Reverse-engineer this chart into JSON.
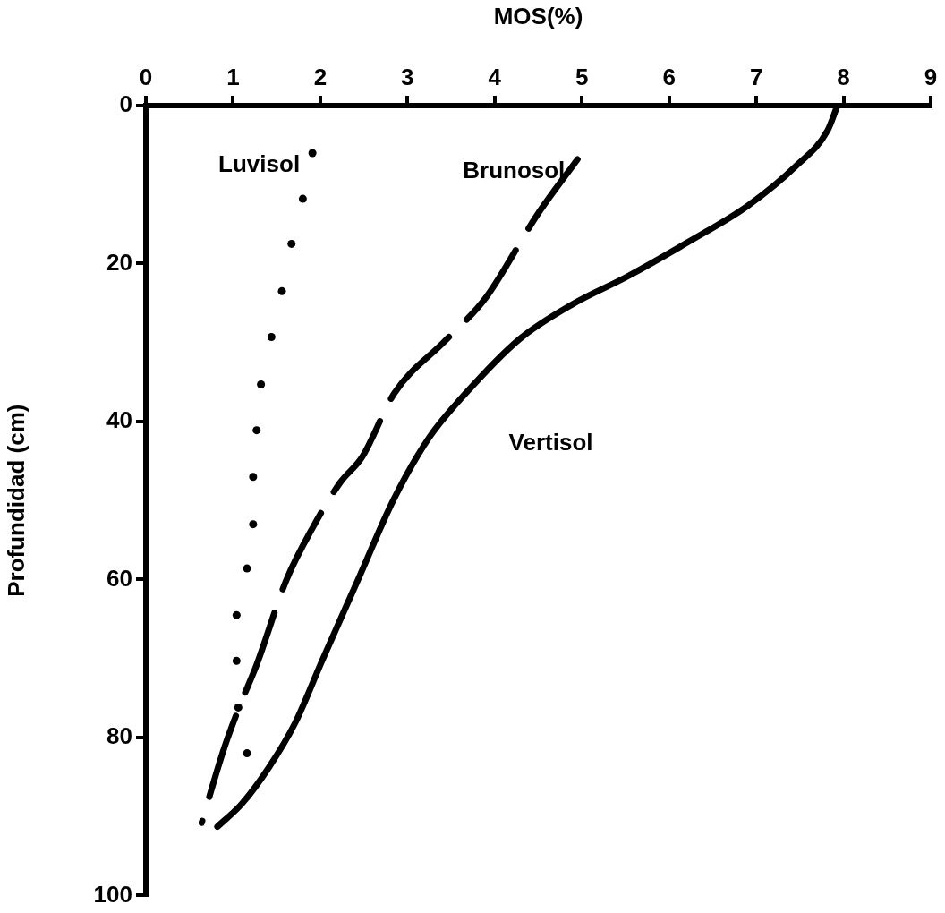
{
  "chart_data": {
    "type": "line",
    "xlabel": "MOS(%)",
    "ylabel": "Profundidad (cm)",
    "xlim": [
      0,
      9
    ],
    "xticks": [
      0,
      1,
      2,
      3,
      4,
      5,
      6,
      7,
      8,
      9
    ],
    "ylim": [
      100,
      0
    ],
    "yticks": [
      0,
      20,
      40,
      60,
      80,
      100
    ],
    "grid": false,
    "legend": false,
    "marker": "none",
    "series": [
      {
        "name": "Luvisol",
        "type": "scatter",
        "marker": "circle",
        "color": "#000000",
        "x": [
          1.91,
          1.8,
          1.67,
          1.56,
          1.44,
          1.32,
          1.27,
          1.23,
          1.23,
          1.16,
          1.04,
          1.04,
          1.06,
          1.16
        ],
        "values": [
          6.0,
          11.8,
          17.5,
          23.5,
          29.3,
          35.3,
          41.1,
          47.0,
          53.0,
          58.6,
          64.5,
          70.3,
          76.2,
          82.0
        ]
      },
      {
        "name": "Brunosol",
        "color": "#000000",
        "line_style": "dashed",
        "x": [
          4.95,
          4.49,
          3.9,
          3.43,
          2.85,
          2.48,
          2.23,
          1.92,
          1.61,
          1.27,
          1.08,
          0.89,
          0.64
        ],
        "values": [
          6.8,
          13.8,
          24.3,
          29.8,
          36.4,
          44.5,
          47.7,
          53.3,
          60.1,
          70.8,
          75.9,
          81.6,
          90.8
        ]
      },
      {
        "name": "Vertisol",
        "color": "#000000",
        "line_style": "solid",
        "x": [
          7.93,
          7.82,
          7.46,
          6.9,
          6.23,
          5.51,
          4.9,
          4.28,
          3.67,
          3.25,
          2.84,
          2.43,
          2.02,
          1.71,
          1.41,
          1.1,
          0.82
        ],
        "values": [
          0,
          3.1,
          7.6,
          12.7,
          17.2,
          21.7,
          25.1,
          29.6,
          36.4,
          42.0,
          49.9,
          60.1,
          70.3,
          78.2,
          83.8,
          88.4,
          91.3
        ]
      }
    ]
  }
}
